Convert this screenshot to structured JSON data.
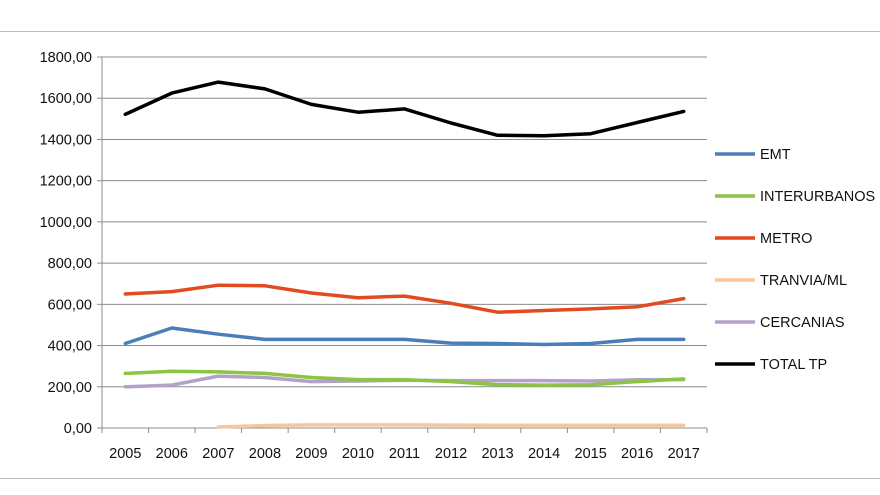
{
  "chart_data": {
    "type": "line",
    "categories": [
      "2005",
      "2006",
      "2007",
      "2008",
      "2009",
      "2010",
      "2011",
      "2012",
      "2013",
      "2014",
      "2015",
      "2016",
      "2017"
    ],
    "ylim": [
      0,
      1800
    ],
    "yticks": [
      "0,00",
      "200,00",
      "400,00",
      "600,00",
      "800,00",
      "1000,00",
      "1200,00",
      "1400,00",
      "1600,00",
      "1800,00"
    ],
    "ytick_values": [
      0,
      200,
      400,
      600,
      800,
      1000,
      1200,
      1400,
      1600,
      1800
    ],
    "grid": true,
    "legend_position": "right",
    "series": [
      {
        "name": "EMT",
        "color": "#4a7ebb",
        "values": [
          410,
          485,
          455,
          430,
          430,
          430,
          430,
          412,
          410,
          405,
          410,
          430,
          430
        ]
      },
      {
        "name": "INTERURBANOS",
        "color": "#8cc443",
        "values": [
          265,
          275,
          272,
          265,
          245,
          235,
          235,
          225,
          210,
          208,
          210,
          225,
          238
        ]
      },
      {
        "name": "METRO",
        "color": "#e24a1f",
        "values": [
          650,
          662,
          693,
          690,
          655,
          632,
          640,
          605,
          562,
          570,
          578,
          588,
          628
        ]
      },
      {
        "name": "TRANVIA/ML",
        "color": "#f6c69c",
        "values": [
          null,
          null,
          5,
          12,
          15,
          15,
          15,
          14,
          13,
          13,
          13,
          13,
          13
        ]
      },
      {
        "name": "CERCANIAS",
        "color": "#b3a2c8",
        "values": [
          200,
          208,
          252,
          245,
          225,
          228,
          232,
          230,
          230,
          230,
          228,
          234,
          235
        ]
      },
      {
        "name": "TOTAL TP",
        "color": "#000000",
        "values": [
          1522,
          1625,
          1678,
          1645,
          1570,
          1532,
          1548,
          1480,
          1420,
          1418,
          1428,
          1482,
          1536
        ]
      }
    ]
  }
}
